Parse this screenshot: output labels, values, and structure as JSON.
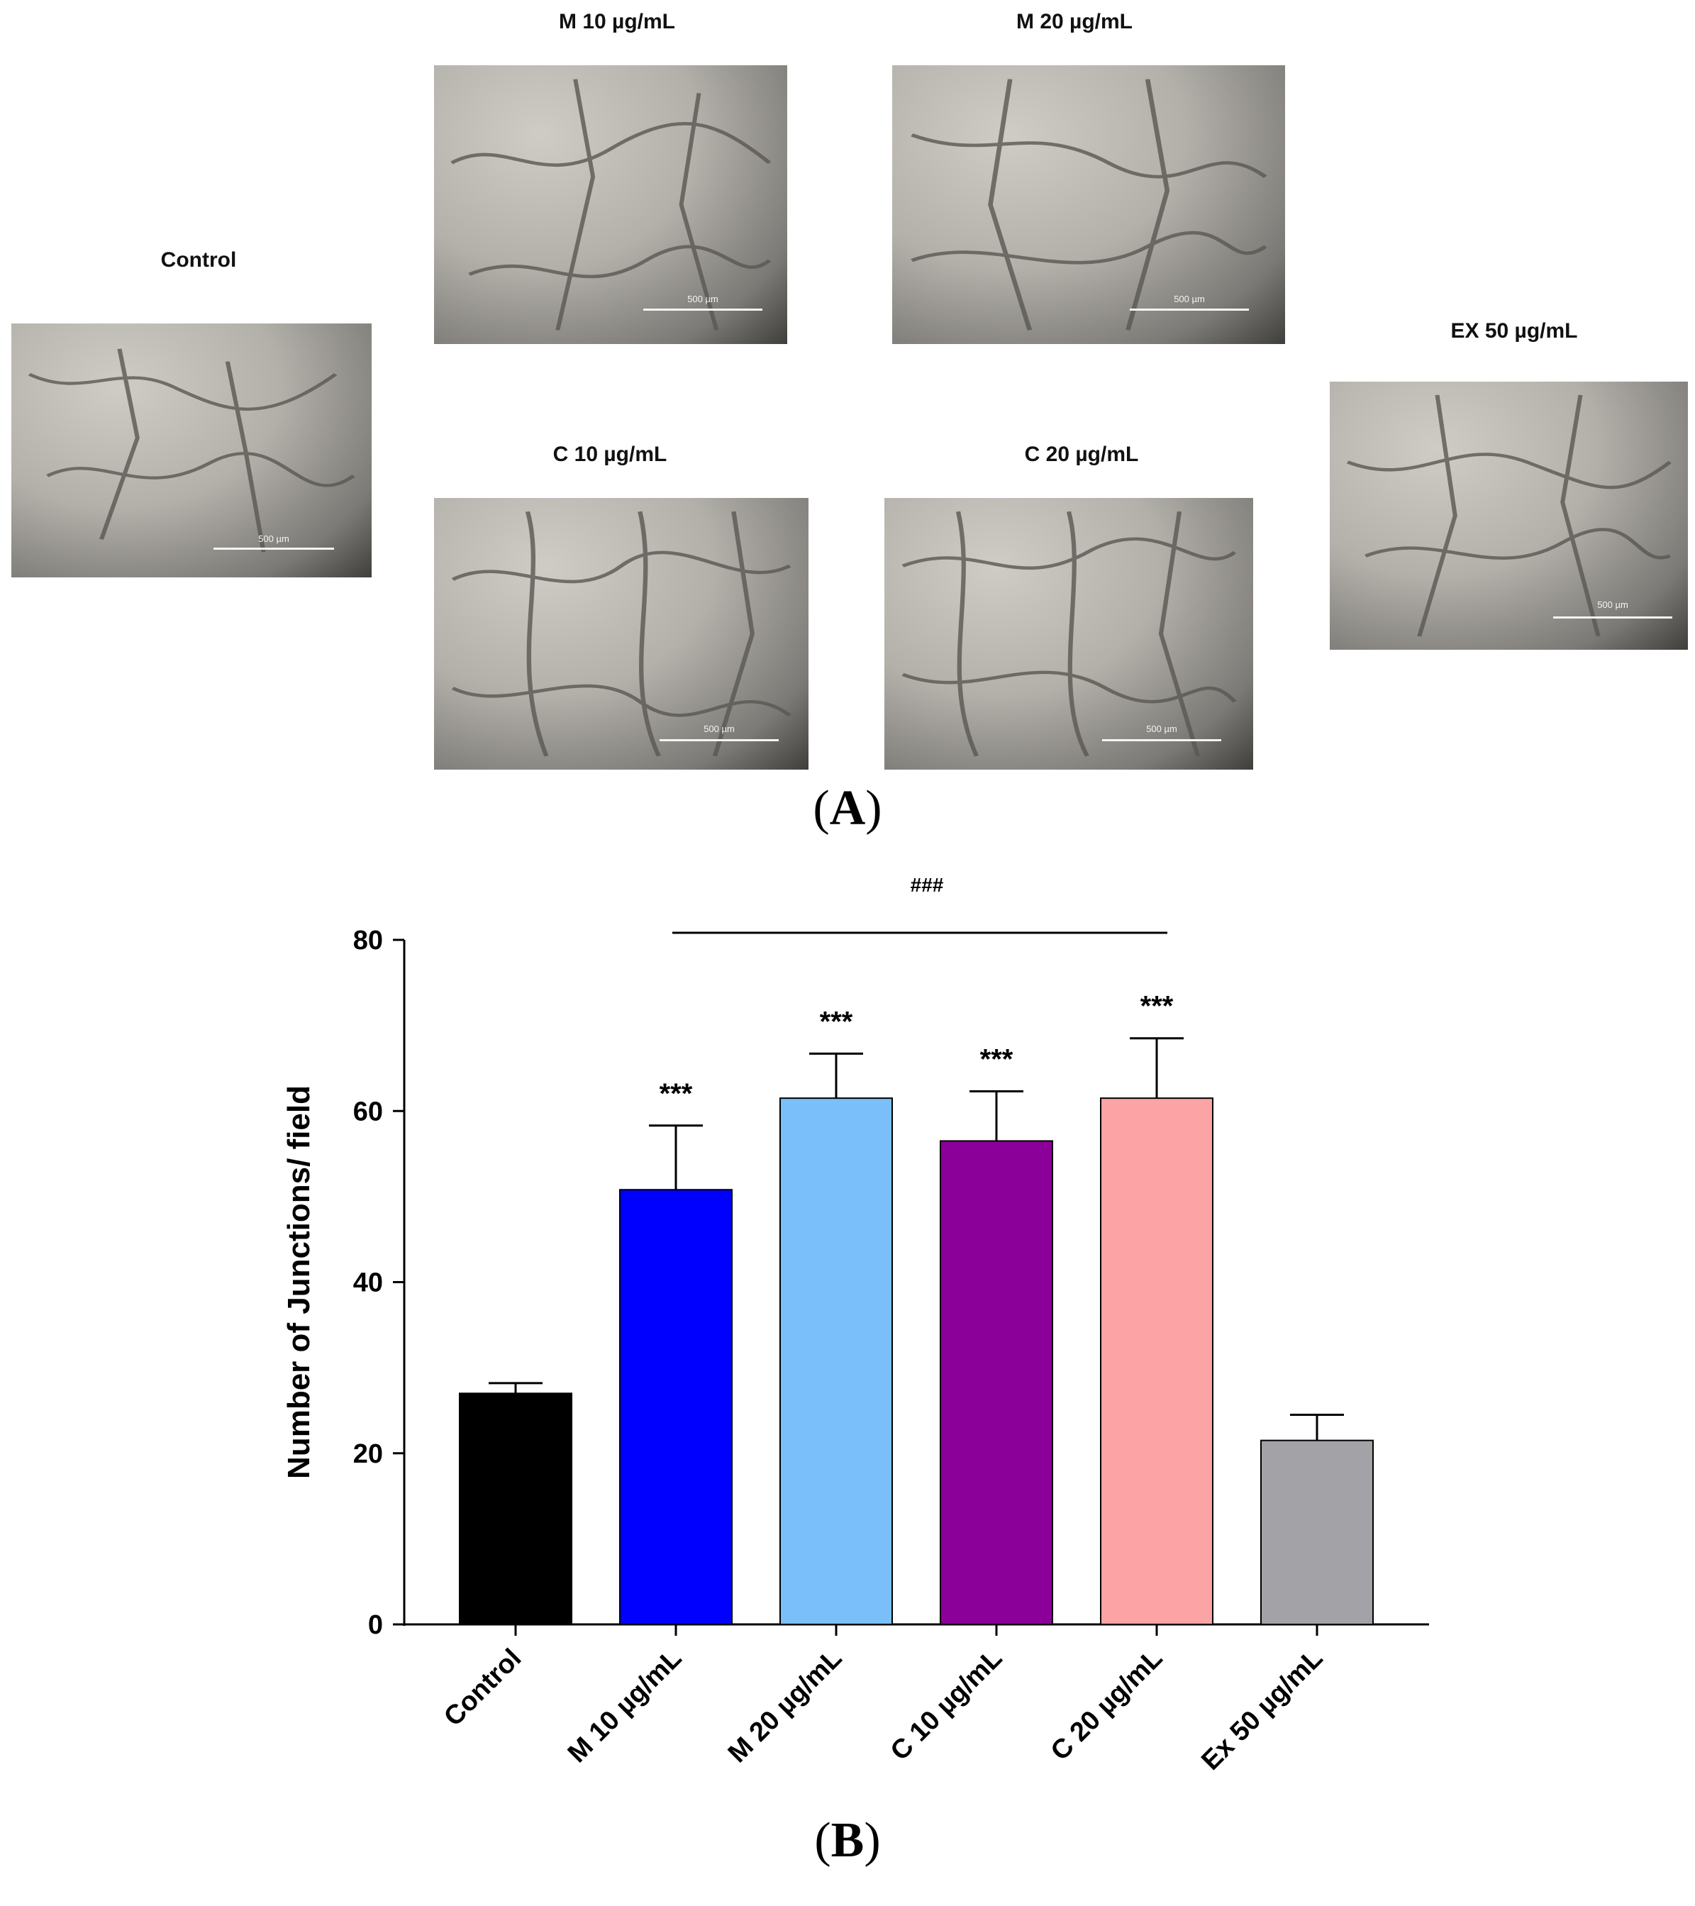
{
  "panel_a": {
    "label_letter": "A",
    "images": [
      {
        "id": "control",
        "title": "Control",
        "scale": "500 µm"
      },
      {
        "id": "m10",
        "title": "M 10 µg/mL",
        "scale": "500 µm"
      },
      {
        "id": "m20",
        "title": "M 20 µg/mL",
        "scale": "500 µm"
      },
      {
        "id": "c10",
        "title": "C 10 µg/mL",
        "scale": "500 µm"
      },
      {
        "id": "c20",
        "title": "C 20 µg/mL",
        "scale": "500 µm"
      },
      {
        "id": "ex50",
        "title": "EX 50 µg/mL",
        "scale": "500 µm"
      }
    ]
  },
  "panel_b": {
    "label_letter": "B"
  },
  "chart_data": {
    "type": "bar",
    "title": "",
    "xlabel": "",
    "ylabel": "Number of Junctions/ field",
    "ylim": [
      0,
      80
    ],
    "yticks": [
      0,
      20,
      40,
      60,
      80
    ],
    "categories": [
      "Control",
      "M 10 µg/mL",
      "M 20 µg/mL",
      "C 10 µg/mL",
      "C 20 µg/mL",
      "Ex 50 µg/mL"
    ],
    "values": [
      27,
      50.8,
      61.5,
      56.5,
      61.5,
      21.5
    ],
    "errors": [
      1.2,
      7.5,
      5.2,
      5.8,
      7.0,
      3.0
    ],
    "colors": [
      "#000000",
      "#0000ff",
      "#7bbffa",
      "#8b0099",
      "#fca3a5",
      "#a3a2a7"
    ],
    "significance": [
      "",
      "***",
      "***",
      "***",
      "***",
      ""
    ],
    "bracket": {
      "label": "###",
      "from_category": 1,
      "to_category": 4
    }
  }
}
